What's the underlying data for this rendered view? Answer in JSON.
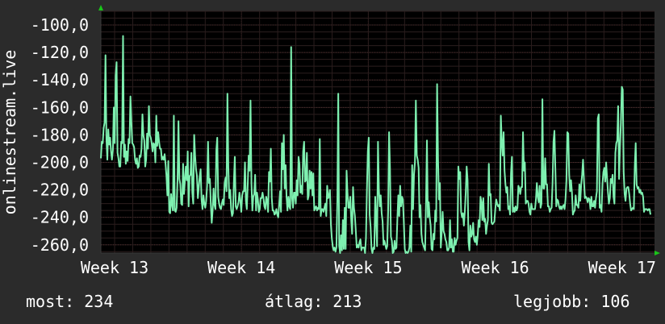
{
  "chart_data": {
    "type": "line",
    "ylabel": "onlinestream.live",
    "y_ticks": [
      "-100,0",
      "-120,0",
      "-140,0",
      "-160,0",
      "-180,0",
      "-200,0",
      "-220,0",
      "-240,0",
      "-260,0"
    ],
    "ylim": [
      -266,
      -90
    ],
    "x_ticks": [
      "Week 13",
      "Week 14",
      "Week 15",
      "Week 16",
      "Week 17"
    ],
    "grid": true,
    "colors": {
      "background": "#2b2b2b",
      "plot": "#000000",
      "line": "#7ef0b0",
      "grid": "#3a2a2a",
      "axis": "#3a3a3a",
      "arrow": "#19c619",
      "text": "#ffffff"
    },
    "series": [
      {
        "values": [
          -197,
          -185,
          -186,
          -175,
          -171,
          -122,
          -183,
          -198,
          -176,
          -187,
          -182,
          -192,
          -198,
          -191,
          -160,
          -186,
          -137,
          -127,
          -193,
          -197,
          -203,
          -203,
          -185,
          -186,
          -108,
          -196,
          -187,
          -201,
          -192,
          -199,
          -183,
          -186,
          -152,
          -170,
          -186,
          -187,
          -189,
          -198,
          -201,
          -197,
          -204,
          -203,
          -195,
          -196,
          -190,
          -165,
          -180,
          -184,
          -203,
          -198,
          -179,
          -190,
          -159,
          -180,
          -182,
          -186,
          -192,
          -186,
          -187,
          -200,
          -166,
          -188,
          -178,
          -185,
          -190,
          -190,
          -198,
          -196,
          -198,
          -194,
          -201,
          -210,
          -224,
          -199,
          -236,
          -237,
          -223,
          -231,
          -235,
          -166,
          -235,
          -236,
          -233,
          -212,
          -170,
          -212,
          -216,
          -230,
          -231,
          -201,
          -223,
          -213,
          -203,
          -213,
          -192,
          -232,
          -210,
          -209,
          -193,
          -222,
          -230,
          -180,
          -195,
          -205,
          -210,
          -226,
          -218,
          -210,
          -205,
          -227,
          -234,
          -224,
          -230,
          -233,
          -228,
          -217,
          -185,
          -215,
          -212,
          -230,
          -244,
          -235,
          -219,
          -231,
          -234,
          -191,
          -182,
          -225,
          -230,
          -233,
          -234,
          -230,
          -227,
          -231,
          -215,
          -211,
          -221,
          -150,
          -204,
          -226,
          -220,
          -234,
          -239,
          -237,
          -214,
          -196,
          -232,
          -234,
          -232,
          -229,
          -222,
          -228,
          -236,
          -224,
          -221,
          -221,
          -200,
          -228,
          -234,
          -216,
          -195,
          -206,
          -155,
          -215,
          -235,
          -225,
          -223,
          -209,
          -235,
          -222,
          -227,
          -236,
          -234,
          -226,
          -226,
          -222,
          -226,
          -232,
          -234,
          -225,
          -228,
          -236,
          -207,
          -214,
          -190,
          -226,
          -235,
          -235,
          -238,
          -237,
          -234,
          -238,
          -240,
          -231,
          -221,
          -236,
          -186,
          -205,
          -180,
          -219,
          -202,
          -225,
          -235,
          -225,
          -232,
          -234,
          -116,
          -226,
          -233,
          -222,
          -222,
          -230,
          -213,
          -224,
          -196,
          -201,
          -222,
          -217,
          -223,
          -192,
          -185,
          -214,
          -213,
          -193,
          -227,
          -224,
          -206,
          -219,
          -207,
          -224,
          -208,
          -235,
          -233,
          -232,
          -235,
          -233,
          -234,
          -183,
          -239,
          -234,
          -234,
          -236,
          -233,
          -230,
          -239,
          -217,
          -226,
          -225,
          -220,
          -245,
          -255,
          -261,
          -264,
          -262,
          -265,
          -262,
          -227,
          -150,
          -261,
          -266,
          -253,
          -264,
          -242,
          -263,
          -233,
          -263,
          -206,
          -222,
          -233,
          -233,
          -225,
          -241,
          -252,
          -218,
          -233,
          -239,
          -250,
          -262,
          -260,
          -262,
          -258,
          -256,
          -264,
          -262,
          -262,
          -262,
          -266,
          -255,
          -220,
          -192,
          -182,
          -238,
          -247,
          -263,
          -266,
          -262,
          -263,
          -225,
          -242,
          -261,
          -185,
          -220,
          -232,
          -224,
          -237,
          -243,
          -260,
          -257,
          -260,
          -263,
          -261,
          -236,
          -178,
          -204,
          -254,
          -257,
          -266,
          -265,
          -257,
          -263,
          -262,
          -241,
          -224,
          -239,
          -217,
          -232,
          -225,
          -227,
          -244,
          -263,
          -266,
          -265,
          -266,
          -265,
          -262,
          -246,
          -265,
          -202,
          -234,
          -209,
          -200,
          -155,
          -195,
          -198,
          -204,
          -240,
          -231,
          -252,
          -258,
          -260,
          -262,
          -264,
          -229,
          -184,
          -240,
          -229,
          -240,
          -246,
          -263,
          -264,
          -252,
          -256,
          -235,
          -243,
          -143,
          -197,
          -227,
          -215,
          -262,
          -251,
          -236,
          -250,
          -252,
          -256,
          -258,
          -264,
          -264,
          -262,
          -242,
          -262,
          -256,
          -265,
          -265,
          -255,
          -260,
          -257,
          -255,
          -203,
          -212,
          -207,
          -236,
          -240,
          -237,
          -246,
          -236,
          -222,
          -203,
          -213,
          -258,
          -264,
          -246,
          -254,
          -252,
          -244,
          -256,
          -258,
          -254,
          -260,
          -253,
          -242,
          -247,
          -225,
          -229,
          -242,
          -226,
          -243,
          -241,
          -252,
          -246,
          -242,
          -201,
          -224,
          -223,
          -244,
          -245,
          -244,
          -243,
          -234,
          -227,
          -230,
          -232,
          -231,
          -235,
          -166,
          -185,
          -195,
          -178,
          -206,
          -216,
          -222,
          -218,
          -234,
          -232,
          -238,
          -208,
          -196,
          -236,
          -233,
          -236,
          -232,
          -235,
          -233,
          -217,
          -219,
          -223,
          -218,
          -218,
          -178,
          -206,
          -200,
          -230,
          -228,
          -228,
          -230,
          -236,
          -238,
          -230,
          -234,
          -234,
          -234,
          -234,
          -227,
          -215,
          -225,
          -229,
          -217,
          -233,
          -230,
          -154,
          -219,
          -219,
          -197,
          -216,
          -216,
          -232,
          -232,
          -236,
          -234,
          -233,
          -215,
          -185,
          -177,
          -204,
          -232,
          -227,
          -228,
          -232,
          -234,
          -232,
          -234,
          -232,
          -231,
          -234,
          -227,
          -213,
          -178,
          -179,
          -209,
          -221,
          -213,
          -222,
          -238,
          -236,
          -235,
          -224,
          -231,
          -231,
          -233,
          -216,
          -228,
          -216,
          -209,
          -198,
          -213,
          -226,
          -225,
          -226,
          -229,
          -226,
          -227,
          -234,
          -225,
          -232,
          -232,
          -228,
          -233,
          -226,
          -221,
          -168,
          -165,
          -233,
          -231,
          -236,
          -216,
          -207,
          -204,
          -214,
          -200,
          -211,
          -222,
          -230,
          -226,
          -212,
          -215,
          -209,
          -225,
          -230,
          -193,
          -186,
          -184,
          -159,
          -212,
          -189,
          -171,
          -145,
          -147,
          -207,
          -223,
          -228,
          -219,
          -218,
          -218,
          -223,
          -230,
          -235,
          -234,
          -233,
          -234,
          -203,
          -186,
          -216,
          -219,
          -218,
          -222,
          -220,
          -223,
          -222,
          -225,
          -236,
          -234,
          -234,
          -234,
          -235,
          -234,
          -234,
          -238
        ]
      }
    ]
  },
  "stats": {
    "now": "most: 234",
    "avg": "átlag: 213",
    "best": "legjobb: 106"
  }
}
